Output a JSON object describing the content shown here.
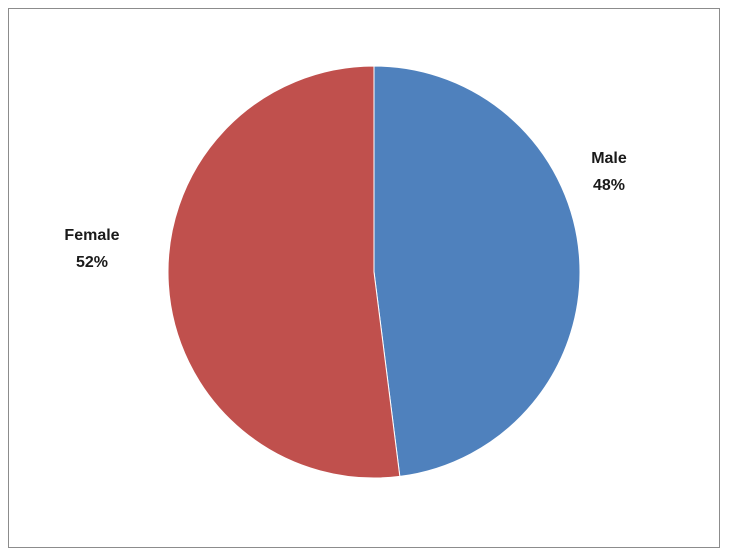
{
  "chart_data": {
    "type": "pie",
    "categories": [
      "Male",
      "Female"
    ],
    "values": [
      48,
      52
    ],
    "labels": [
      "48%",
      "52%"
    ],
    "colors": [
      "#4f81bd",
      "#c0504d"
    ],
    "slice_border_color": "#ffffff",
    "start_angle_deg": 0,
    "direction": "clockwise",
    "legend": "none",
    "title": ""
  }
}
